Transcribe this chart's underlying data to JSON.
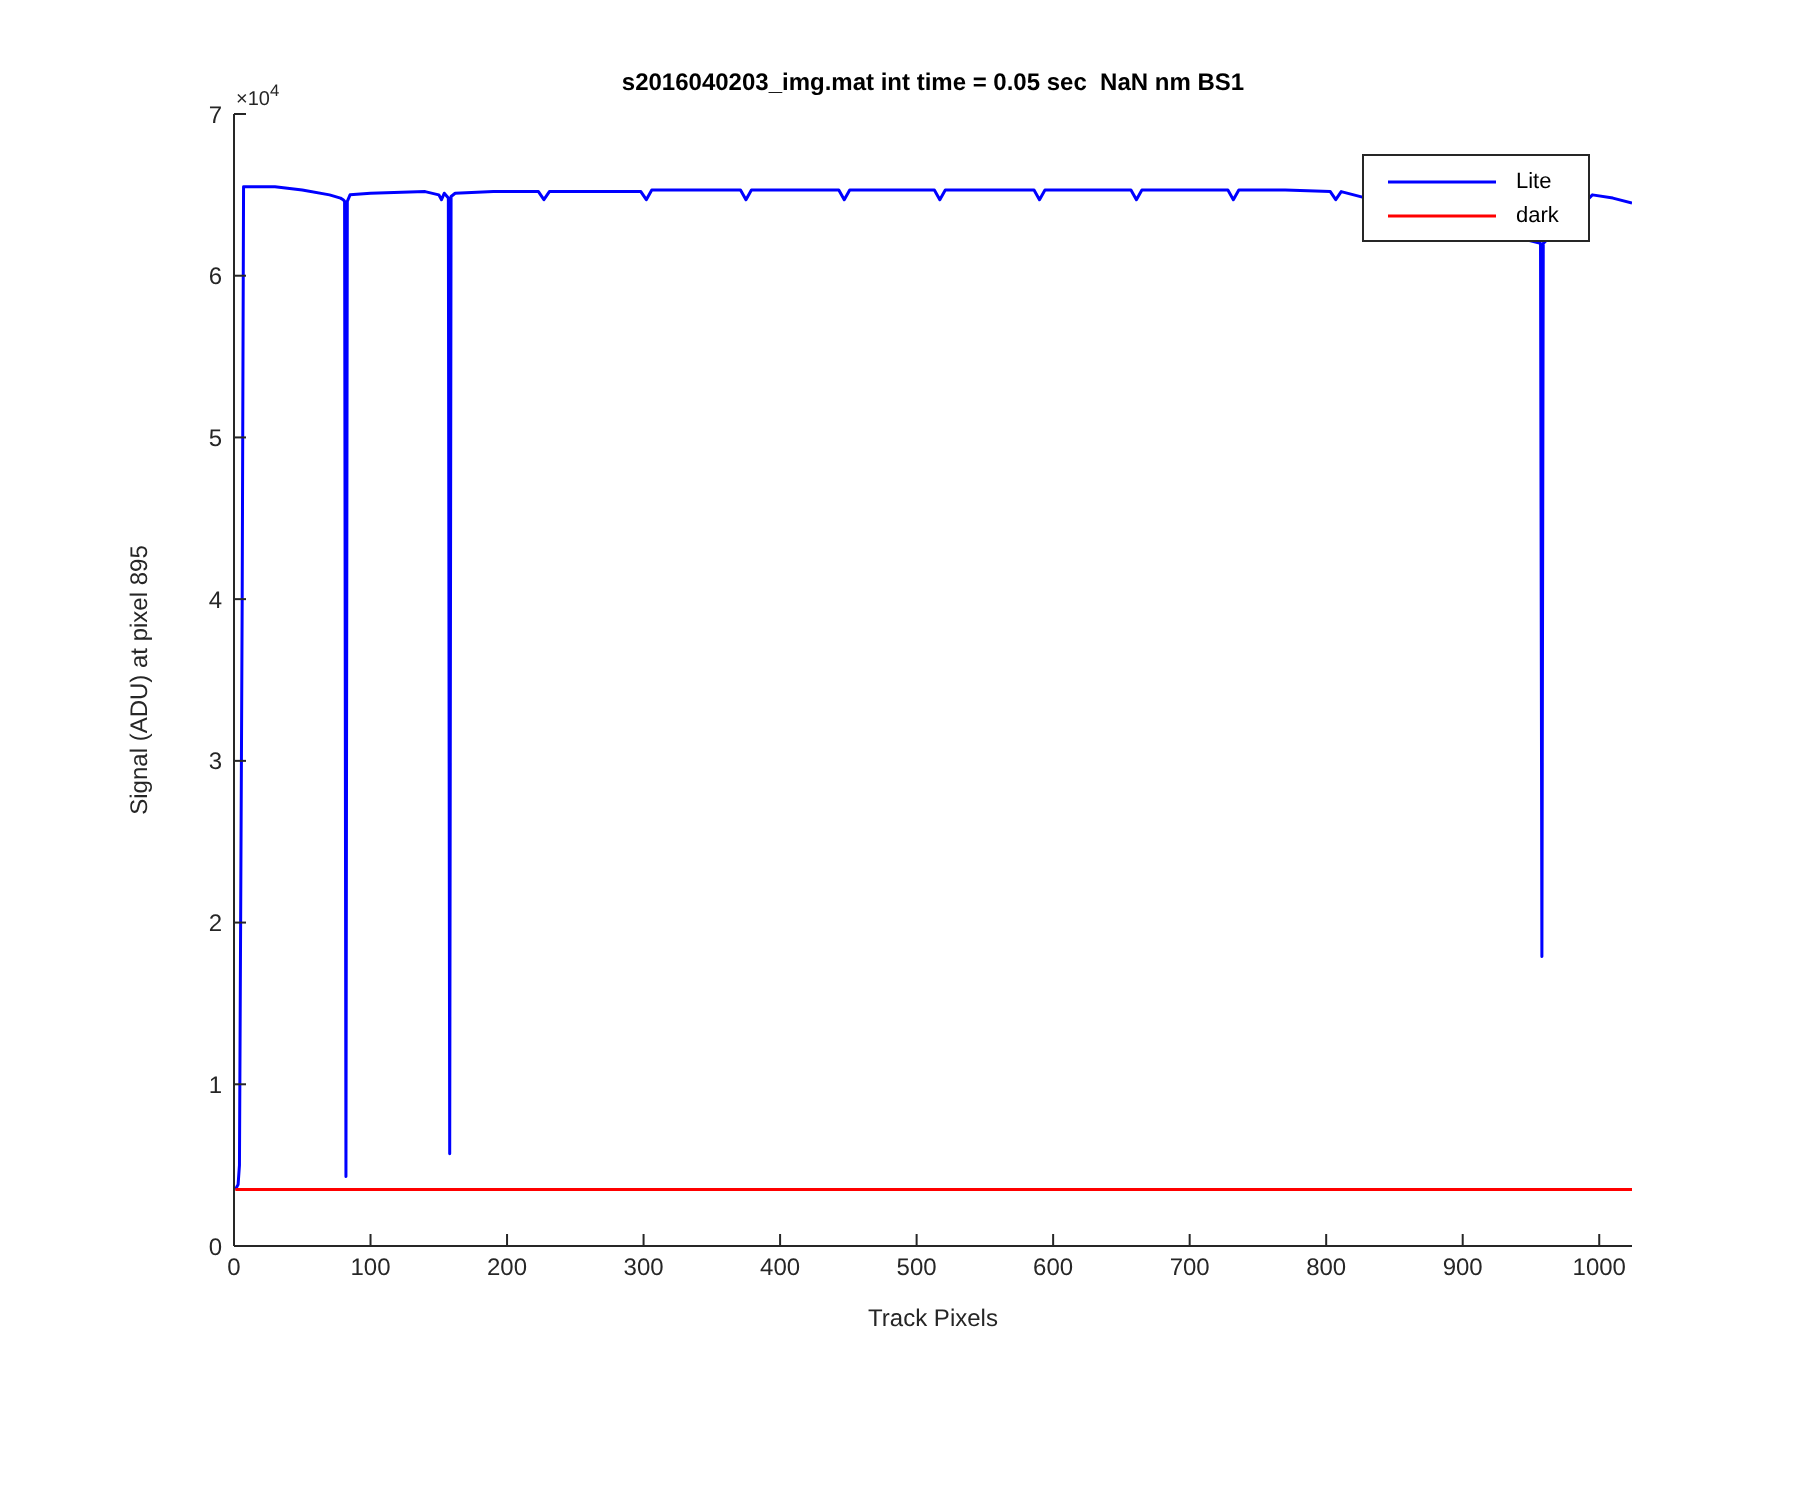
{
  "chart_data": {
    "type": "line",
    "title": "s2016040203_img.mat int time = 0.05 sec  NaN nm BS1",
    "xlabel": "Track Pixels",
    "ylabel": "Signal (ADU) at pixel 895",
    "annotations": [
      "×10$^{4}$"
    ],
    "xlim": [
      0,
      1024
    ],
    "xticks": [
      0,
      100,
      200,
      300,
      400,
      500,
      600,
      700,
      800,
      900,
      1000
    ],
    "ylim": [
      0,
      7
    ],
    "yticks": [
      0,
      1,
      2,
      3,
      4,
      5,
      6,
      7
    ],
    "legend": "top right",
    "marker": "none",
    "line_style": "solid",
    "series": [
      {
        "name": "Lite",
        "color": "#0000ff",
        "x": [
          1,
          3,
          4,
          6,
          7,
          30,
          50,
          70,
          78,
          80,
          81,
          82,
          83,
          85,
          100,
          140,
          150,
          152,
          154,
          157,
          158,
          159,
          162,
          190,
          223,
          227,
          231,
          265,
          298,
          302,
          306,
          340,
          371,
          375,
          379,
          410,
          443,
          447,
          451,
          480,
          513,
          517,
          521,
          555,
          586,
          590,
          594,
          625,
          657,
          661,
          665,
          700,
          728,
          732,
          736,
          770,
          803,
          807,
          811,
          957,
          958,
          959,
          995,
          1010,
          1024
        ],
        "values": [
          0.35,
          0.38,
          0.5,
          4,
          6.55,
          6.55,
          6.53,
          6.5,
          6.48,
          6.47,
          6.46,
          0.43,
          6.46,
          6.5,
          6.51,
          6.52,
          6.5,
          6.47,
          6.51,
          6.48,
          0.57,
          6.49,
          6.51,
          6.52,
          6.52,
          6.47,
          6.52,
          6.52,
          6.52,
          6.47,
          6.53,
          6.53,
          6.53,
          6.47,
          6.53,
          6.53,
          6.53,
          6.47,
          6.53,
          6.53,
          6.53,
          6.47,
          6.53,
          6.53,
          6.53,
          6.47,
          6.53,
          6.53,
          6.53,
          6.47,
          6.53,
          6.53,
          6.53,
          6.47,
          6.53,
          6.53,
          6.52,
          6.47,
          6.52,
          6.2,
          1.79,
          6.2,
          6.5,
          6.48,
          6.45
        ]
      },
      {
        "name": "dark",
        "color": "#ff0000",
        "x": [
          1,
          200,
          400,
          600,
          800,
          1024
        ],
        "values": [
          0.35,
          0.35,
          0.35,
          0.35,
          0.35,
          0.35
        ]
      }
    ]
  }
}
